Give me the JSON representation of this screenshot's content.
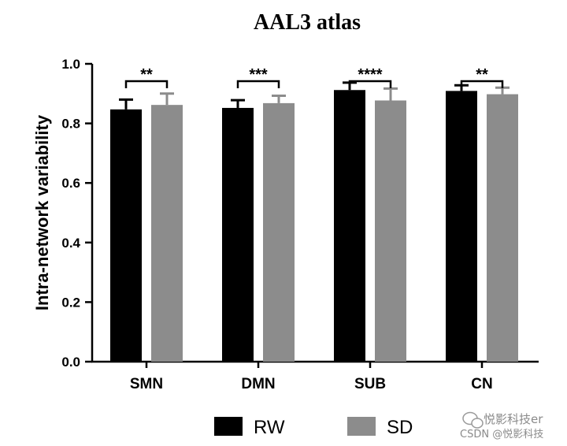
{
  "chart_data": {
    "type": "bar",
    "title": "AAL3 atlas",
    "xlabel": "",
    "ylabel": "Intra-network variability",
    "ylim": [
      0,
      1.0
    ],
    "yticks": [
      "0.0",
      "0.2",
      "0.4",
      "0.6",
      "0.8",
      "1.0"
    ],
    "categories": [
      "SMN",
      "DMN",
      "SUB",
      "CN"
    ],
    "series": [
      {
        "name": "RW",
        "color": "#000000",
        "values": [
          0.847,
          0.852,
          0.912,
          0.909
        ],
        "errors": [
          0.033,
          0.026,
          0.025,
          0.019
        ]
      },
      {
        "name": "SD",
        "color": "#8c8c8c",
        "values": [
          0.862,
          0.868,
          0.877,
          0.898
        ],
        "errors": [
          0.038,
          0.025,
          0.04,
          0.022
        ]
      }
    ],
    "significance": [
      "**",
      "***",
      "****",
      "**"
    ],
    "legend_position": "bottom-center",
    "grid": false
  },
  "watermark": {
    "line1": "悦影科技er",
    "line2": "CSDN @悦影科技"
  }
}
